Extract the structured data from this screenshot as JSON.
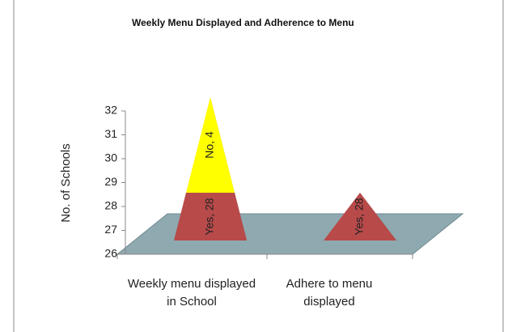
{
  "chart_data": {
    "type": "pyramid3d_stacked",
    "title": "Weekly Menu Displayed and Adherence  to Menu",
    "y_label": "No. of Schools",
    "categories": [
      "Weekly menu displayed in School",
      "Adhere to menu displayed"
    ],
    "series": [
      {
        "name": "Yes",
        "color": "#b84a4a",
        "values": [
          28,
          28
        ],
        "value_labels": [
          "Yes, 28",
          "Yes, 28"
        ]
      },
      {
        "name": "No",
        "color": "#ffff00",
        "values": [
          4,
          null
        ],
        "value_labels": [
          "No, 4",
          null
        ]
      }
    ],
    "ylim": [
      26,
      32
    ],
    "yticks": [
      26,
      27,
      28,
      29,
      30,
      31,
      32
    ]
  }
}
